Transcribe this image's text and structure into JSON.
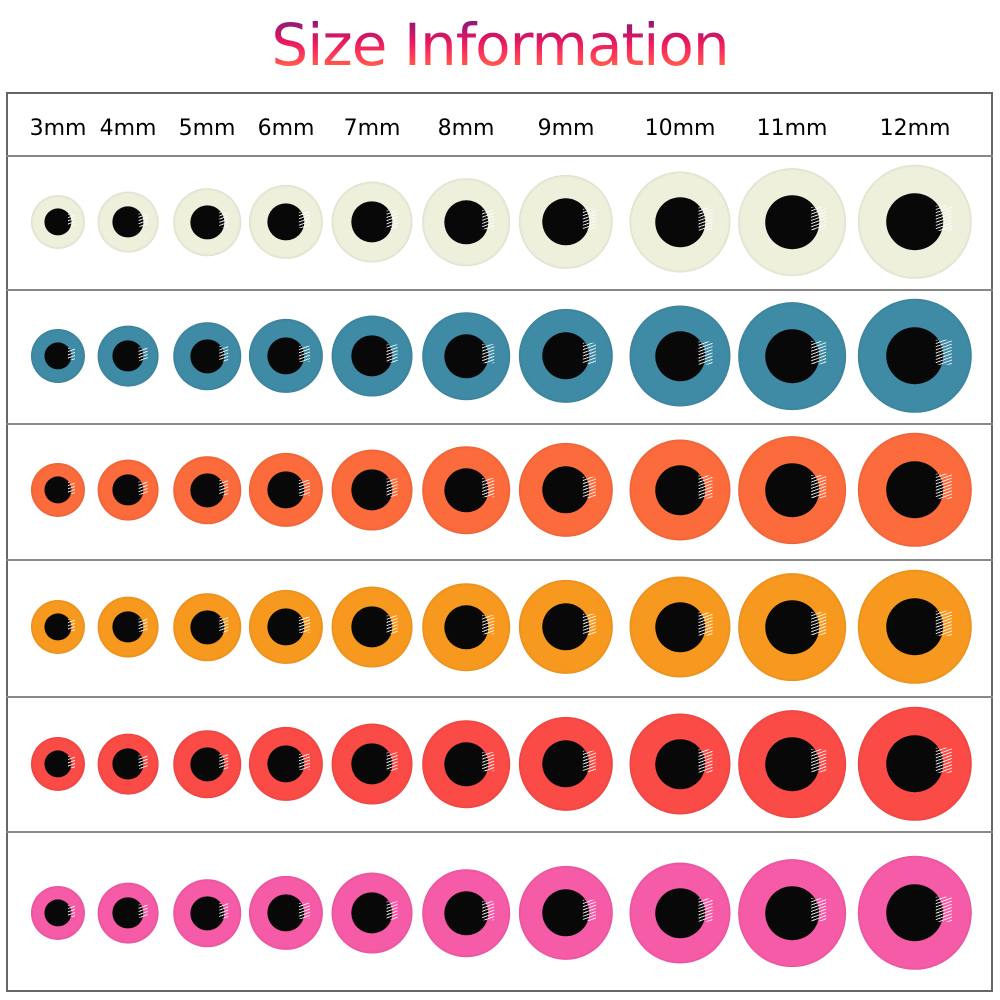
{
  "title": "Size Information",
  "sizes": [
    "3mm",
    "4mm",
    "5mm",
    "6mm",
    "7mm",
    "8mm",
    "9mm",
    "10mm",
    "11mm",
    "12mm"
  ],
  "rows": [
    {
      "name": "glow-white",
      "color": "#eef0dc"
    },
    {
      "name": "blue",
      "color": "#3f8ba6"
    },
    {
      "name": "orange-red",
      "color": "#fb6b3c"
    },
    {
      "name": "orange",
      "color": "#f8991f"
    },
    {
      "name": "red",
      "color": "#fa4b47"
    },
    {
      "name": "pink",
      "color": "#f65ba8"
    }
  ],
  "pupil_color": "#080808"
}
